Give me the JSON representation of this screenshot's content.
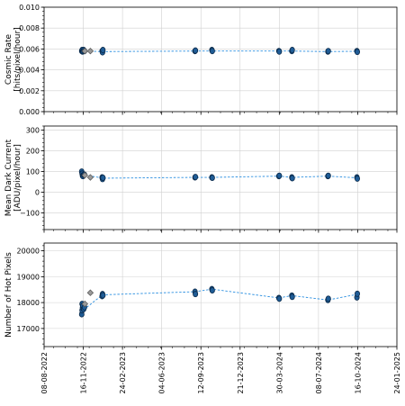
{
  "x_tick_labels": [
    "08-08-2022",
    "16-11-2022",
    "24-02-2023",
    "04-06-2023",
    "12-09-2023",
    "21-12-2023",
    "30-03-2024",
    "08-07-2024",
    "16-10-2024",
    "24-01-2025"
  ],
  "colors": {
    "point_fill": "#1f5c96",
    "point_edge": "#0b2a4a",
    "line": "#2b8fe0",
    "excluded_fill": "#9a9a9a",
    "grid": "#d0d0d0"
  },
  "chart_data": [
    {
      "type": "scatter",
      "title": "",
      "ylabel_lines": [
        "Cosmic Rate",
        "[hits/pixel/hour]"
      ],
      "ylim": [
        0,
        0.01
      ],
      "yticks": [
        "0.000",
        "0.002",
        "0.004",
        "0.006",
        "0.008",
        "0.010"
      ],
      "ytick_values": [
        0,
        0.002,
        0.004,
        0.006,
        0.008,
        0.01
      ],
      "xlim": [
        "08-08-2022",
        "24-01-2025"
      ],
      "grid": true,
      "series": [
        {
          "role": "trend",
          "marker": "none",
          "points": [
            {
              "x": "2022-11-14",
              "y": 0.0058
            },
            {
              "x": "2022-11-19",
              "y": 0.0058
            },
            {
              "x": "2023-01-04",
              "y": 0.00575
            },
            {
              "x": "2023-08-28",
              "y": 0.0058
            },
            {
              "x": "2023-10-10",
              "y": 0.0058
            },
            {
              "x": "2024-03-29",
              "y": 0.0058
            },
            {
              "x": "2024-05-01",
              "y": 0.0058
            },
            {
              "x": "2024-08-01",
              "y": 0.00575
            },
            {
              "x": "2024-10-15",
              "y": 0.00578
            }
          ]
        },
        {
          "role": "measured",
          "marker": "circle",
          "points": [
            {
              "x": "2022-11-12",
              "y": 0.0058
            },
            {
              "x": "2022-11-13",
              "y": 0.0059
            },
            {
              "x": "2022-11-14",
              "y": 0.00575
            },
            {
              "x": "2022-11-15",
              "y": 0.0058
            },
            {
              "x": "2022-11-17",
              "y": 0.0059
            },
            {
              "x": "2022-11-19",
              "y": 0.0058
            },
            {
              "x": "2023-01-03",
              "y": 0.0058
            },
            {
              "x": "2023-01-04",
              "y": 0.00568
            },
            {
              "x": "2023-01-05",
              "y": 0.0059
            },
            {
              "x": "2023-08-28",
              "y": 0.0058
            },
            {
              "x": "2023-08-29",
              "y": 0.00585
            },
            {
              "x": "2023-10-10",
              "y": 0.0059
            },
            {
              "x": "2023-10-11",
              "y": 0.0058
            },
            {
              "x": "2024-03-29",
              "y": 0.0058
            },
            {
              "x": "2024-03-30",
              "y": 0.00575
            },
            {
              "x": "2024-05-01",
              "y": 0.0058
            },
            {
              "x": "2024-05-02",
              "y": 0.0059
            },
            {
              "x": "2024-08-01",
              "y": 0.00575
            },
            {
              "x": "2024-08-02",
              "y": 0.0058
            },
            {
              "x": "2024-10-14",
              "y": 0.0058
            },
            {
              "x": "2024-10-15",
              "y": 0.00572
            }
          ]
        },
        {
          "role": "excluded",
          "marker": "diamond",
          "points": [
            {
              "x": "2022-11-20",
              "y": 0.0058
            },
            {
              "x": "2022-12-04",
              "y": 0.0058
            }
          ]
        }
      ]
    },
    {
      "type": "scatter",
      "title": "",
      "ylabel_lines": [
        "Mean Dark Current",
        "[ADU/pixel/hour]"
      ],
      "ylim": [
        -180,
        320
      ],
      "yticks": [
        "−100",
        "0",
        "100",
        "200",
        "300"
      ],
      "ytick_values": [
        -100,
        0,
        100,
        200,
        300
      ],
      "xlim": [
        "08-08-2022",
        "24-01-2025"
      ],
      "grid": true,
      "series": [
        {
          "role": "trend",
          "marker": "none",
          "points": [
            {
              "x": "2022-11-12",
              "y": 95
            },
            {
              "x": "2022-11-19",
              "y": 85
            },
            {
              "x": "2023-01-04",
              "y": 68
            },
            {
              "x": "2023-08-28",
              "y": 72
            },
            {
              "x": "2023-10-10",
              "y": 72
            },
            {
              "x": "2024-03-29",
              "y": 78
            },
            {
              "x": "2024-05-01",
              "y": 72
            },
            {
              "x": "2024-08-01",
              "y": 78
            },
            {
              "x": "2024-10-15",
              "y": 70
            }
          ]
        },
        {
          "role": "measured",
          "marker": "circle",
          "points": [
            {
              "x": "2022-11-12",
              "y": 100
            },
            {
              "x": "2022-11-13",
              "y": 90
            },
            {
              "x": "2022-11-14",
              "y": 80
            },
            {
              "x": "2022-11-15",
              "y": 78
            },
            {
              "x": "2022-11-17",
              "y": 84
            },
            {
              "x": "2022-11-19",
              "y": 85
            },
            {
              "x": "2023-01-03",
              "y": 72
            },
            {
              "x": "2023-01-04",
              "y": 64
            },
            {
              "x": "2023-01-05",
              "y": 70
            },
            {
              "x": "2023-08-28",
              "y": 72
            },
            {
              "x": "2023-08-29",
              "y": 74
            },
            {
              "x": "2023-10-10",
              "y": 72
            },
            {
              "x": "2023-10-11",
              "y": 70
            },
            {
              "x": "2024-03-29",
              "y": 78
            },
            {
              "x": "2024-03-30",
              "y": 80
            },
            {
              "x": "2024-05-01",
              "y": 72
            },
            {
              "x": "2024-05-02",
              "y": 68
            },
            {
              "x": "2024-08-01",
              "y": 78
            },
            {
              "x": "2024-08-02",
              "y": 80
            },
            {
              "x": "2024-10-14",
              "y": 72
            },
            {
              "x": "2024-10-15",
              "y": 66
            }
          ]
        },
        {
          "role": "excluded",
          "marker": "diamond",
          "points": [
            {
              "x": "2022-11-20",
              "y": 82
            },
            {
              "x": "2022-12-04",
              "y": 72
            }
          ]
        }
      ]
    },
    {
      "type": "scatter",
      "title": "",
      "ylabel_lines": [
        "Number of Hot Pixels"
      ],
      "ylim": [
        16300,
        20300
      ],
      "yticks": [
        "17000",
        "18000",
        "19000",
        "20000"
      ],
      "ytick_values": [
        17000,
        18000,
        19000,
        20000
      ],
      "xlim": [
        "08-08-2022",
        "24-01-2025"
      ],
      "grid": true,
      "series": [
        {
          "role": "trend",
          "marker": "none",
          "points": [
            {
              "x": "2022-11-12",
              "y": 17600
            },
            {
              "x": "2022-11-19",
              "y": 17750
            },
            {
              "x": "2023-01-04",
              "y": 18300
            },
            {
              "x": "2023-08-28",
              "y": 18420
            },
            {
              "x": "2023-10-10",
              "y": 18520
            },
            {
              "x": "2024-03-29",
              "y": 18180
            },
            {
              "x": "2024-05-01",
              "y": 18270
            },
            {
              "x": "2024-08-01",
              "y": 18100
            },
            {
              "x": "2024-10-15",
              "y": 18320
            }
          ]
        },
        {
          "role": "measured",
          "marker": "circle",
          "points": [
            {
              "x": "2022-11-12",
              "y": 17550
            },
            {
              "x": "2022-11-13",
              "y": 17700
            },
            {
              "x": "2022-11-13",
              "y": 17950
            },
            {
              "x": "2022-11-14",
              "y": 17800
            },
            {
              "x": "2022-11-15",
              "y": 17880
            },
            {
              "x": "2022-11-17",
              "y": 17750
            },
            {
              "x": "2022-11-19",
              "y": 17820
            },
            {
              "x": "2023-01-03",
              "y": 18250
            },
            {
              "x": "2023-01-04",
              "y": 18330
            },
            {
              "x": "2023-01-05",
              "y": 18280
            },
            {
              "x": "2023-08-28",
              "y": 18420
            },
            {
              "x": "2023-08-29",
              "y": 18330
            },
            {
              "x": "2023-10-10",
              "y": 18520
            },
            {
              "x": "2023-10-11",
              "y": 18470
            },
            {
              "x": "2024-03-29",
              "y": 18180
            },
            {
              "x": "2024-03-30",
              "y": 18150
            },
            {
              "x": "2024-05-01",
              "y": 18270
            },
            {
              "x": "2024-05-02",
              "y": 18220
            },
            {
              "x": "2024-08-01",
              "y": 18100
            },
            {
              "x": "2024-08-02",
              "y": 18150
            },
            {
              "x": "2024-10-14",
              "y": 18200
            },
            {
              "x": "2024-10-15",
              "y": 18340
            }
          ]
        },
        {
          "role": "excluded",
          "marker": "diamond",
          "points": [
            {
              "x": "2022-11-20",
              "y": 17950
            },
            {
              "x": "2022-12-04",
              "y": 18380
            }
          ]
        }
      ]
    }
  ]
}
